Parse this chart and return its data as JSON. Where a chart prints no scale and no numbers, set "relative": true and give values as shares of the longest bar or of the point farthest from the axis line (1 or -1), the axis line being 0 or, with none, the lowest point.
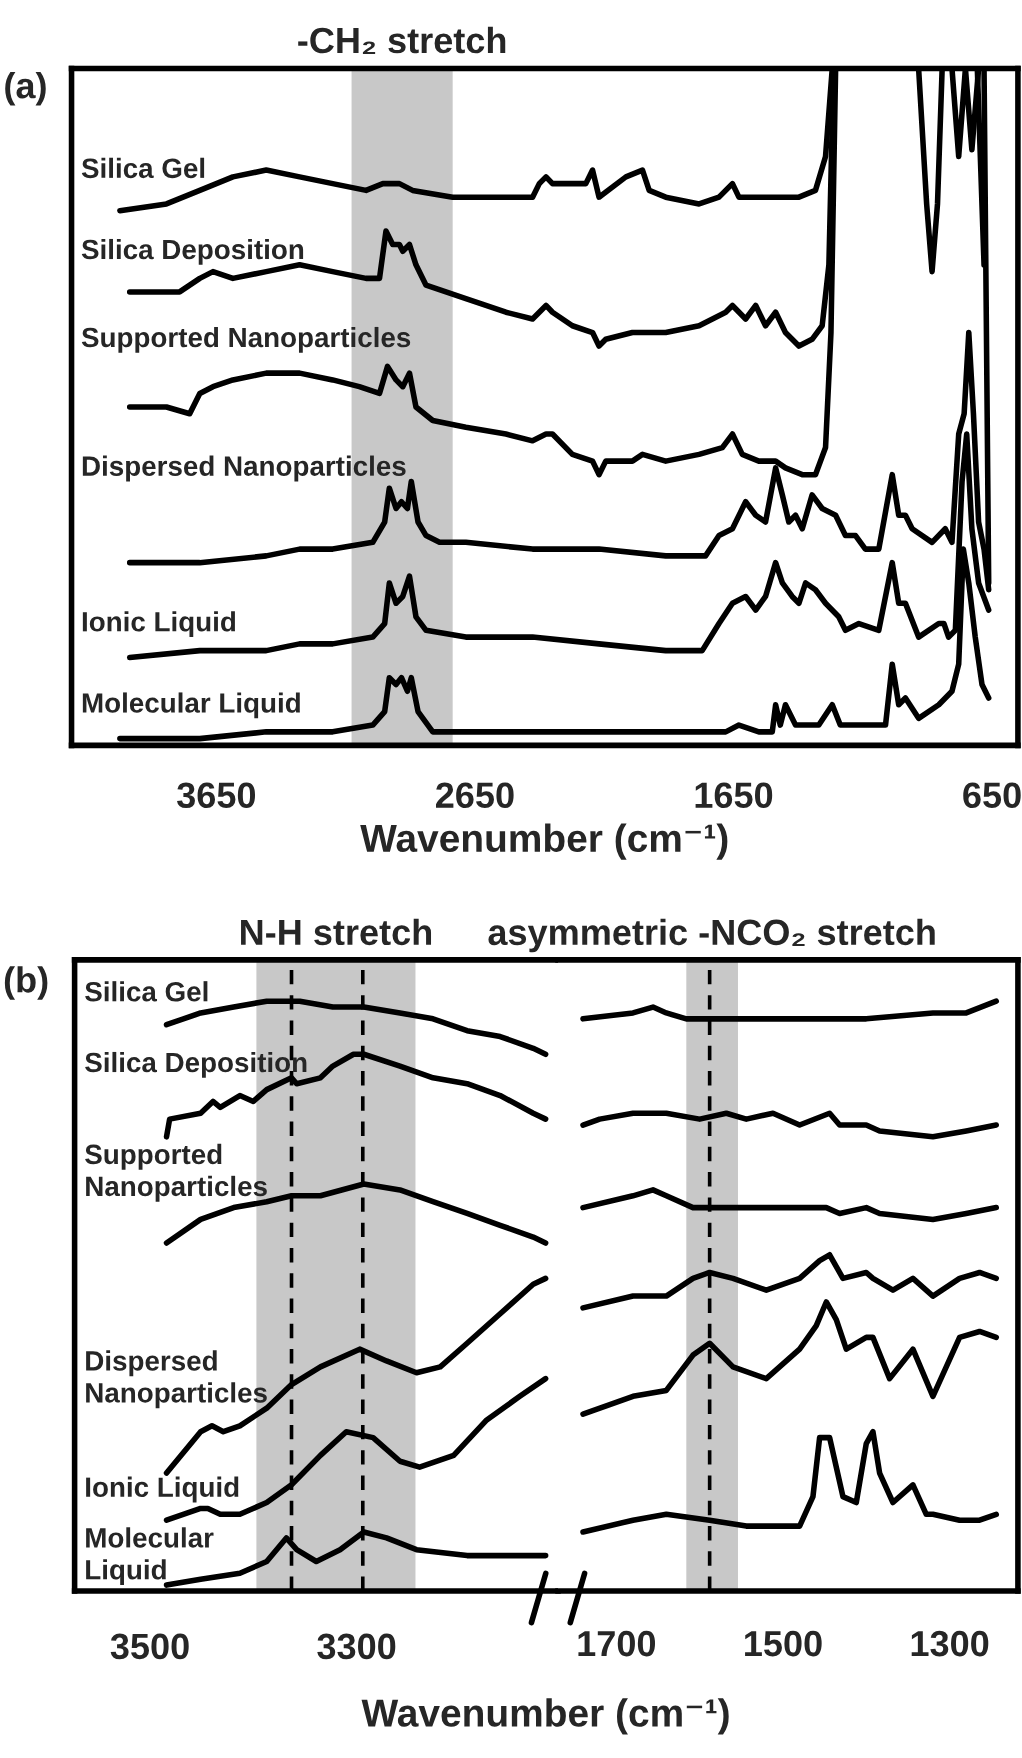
{
  "chart_data": [
    {
      "type": "line",
      "relative": true,
      "xlabel": "Wavenumber (cm⁻¹)",
      "xlim": [
        4210,
        550
      ],
      "xticks": [
        3650,
        2650,
        1650,
        650
      ],
      "annotations": [
        "(a)"
      ],
      "bands": [
        {
          "axis": "x",
          "from": 3127,
          "to": 2736,
          "label": "-CH₂ stretch",
          "color": "#c8c8c8"
        }
      ],
      "series": [
        {
          "name": "Silica Gel",
          "color": "#000000",
          "x": [
            4023,
            3843,
            3714,
            3586,
            3457,
            3328,
            3200,
            3071,
            3006,
            2968,
            2942,
            2891,
            2736,
            2530,
            2427,
            2401,
            2375,
            2350,
            2298,
            2221,
            2195,
            2170,
            2066,
            2002,
            1976,
            1912,
            1783,
            1706,
            1654,
            1629,
            1526,
            1397,
            1333,
            1294,
            1268,
            1114,
            934,
            903,
            882,
            861,
            843,
            837,
            805,
            779,
            753,
            728,
            702
          ],
          "values": [
            0.79,
            0.8,
            0.82,
            0.84,
            0.85,
            0.84,
            0.83,
            0.82,
            0.83,
            0.83,
            0.83,
            0.82,
            0.81,
            0.81,
            0.81,
            0.83,
            0.84,
            0.83,
            0.83,
            0.83,
            0.85,
            0.81,
            0.84,
            0.85,
            0.82,
            0.81,
            0.8,
            0.81,
            0.83,
            0.81,
            0.81,
            0.81,
            0.82,
            0.87,
            1.0,
            null,
            1.0,
            0.8,
            0.7,
            0.8,
            1.0,
            null,
            1.0,
            0.87,
            1.0,
            0.88,
            1.0
          ]
        },
        {
          "name": "Silica Deposition",
          "color": "#000000",
          "x": [
            3985,
            3895,
            3792,
            3714,
            3663,
            3586,
            3457,
            3328,
            3200,
            3071,
            3019,
            2994,
            2968,
            2942,
            2929,
            2903,
            2878,
            2839,
            2685,
            2530,
            2427,
            2375,
            2350,
            2273,
            2195,
            2170,
            2144,
            2041,
            1912,
            1783,
            1680,
            1654,
            1603,
            1564,
            1526,
            1487,
            1449,
            1397,
            1346,
            1307,
            1281,
            1263,
            1114,
            707,
            681
          ],
          "values": [
            0.67,
            0.67,
            0.67,
            0.69,
            0.7,
            0.69,
            0.7,
            0.71,
            0.7,
            0.69,
            0.69,
            0.76,
            0.74,
            0.74,
            0.73,
            0.74,
            0.71,
            0.68,
            0.66,
            0.64,
            0.63,
            0.65,
            0.64,
            0.62,
            0.61,
            0.59,
            0.6,
            0.61,
            0.61,
            0.62,
            0.64,
            0.65,
            0.63,
            0.65,
            0.62,
            0.64,
            0.61,
            0.59,
            0.6,
            0.62,
            0.71,
            1.0,
            null,
            1.0,
            0.71
          ]
        },
        {
          "name": "Supported Nanoparticles",
          "color": "#000000",
          "x": [
            3985,
            3843,
            3753,
            3714,
            3663,
            3586,
            3457,
            3328,
            3200,
            3097,
            3019,
            2988,
            2955,
            2929,
            2903,
            2878,
            2813,
            2685,
            2530,
            2427,
            2375,
            2350,
            2273,
            2195,
            2170,
            2144,
            2041,
            2002,
            1912,
            1783,
            1693,
            1654,
            1616,
            1552,
            1487,
            1449,
            1384,
            1333,
            1294,
            1273,
            1255,
            1114,
            681,
            663
          ],
          "values": [
            0.5,
            0.5,
            0.49,
            0.52,
            0.53,
            0.54,
            0.55,
            0.55,
            0.54,
            0.53,
            0.52,
            0.56,
            0.54,
            0.53,
            0.55,
            0.5,
            0.48,
            0.47,
            0.46,
            0.45,
            0.46,
            0.46,
            0.43,
            0.42,
            0.4,
            0.42,
            0.42,
            0.43,
            0.42,
            0.43,
            0.44,
            0.46,
            0.43,
            0.42,
            0.42,
            0.41,
            0.4,
            0.4,
            0.44,
            0.61,
            1.0,
            null,
            1.0,
            0.24
          ]
        },
        {
          "name": "Dispersed Nanoparticles",
          "color": "#000000",
          "x": [
            3985,
            3714,
            3457,
            3328,
            3200,
            3045,
            2999,
            2981,
            2955,
            2934,
            2911,
            2896,
            2870,
            2839,
            2787,
            2685,
            2427,
            2170,
            1912,
            1758,
            1706,
            1654,
            1603,
            1564,
            1526,
            1487,
            1461,
            1436,
            1410,
            1384,
            1346,
            1307,
            1255,
            1217,
            1178,
            1140,
            1088,
            1036,
            1011,
            985,
            959,
            882,
            831,
            805,
            779,
            758,
            740,
            722,
            702,
            681,
            663
          ],
          "values": [
            0.27,
            0.27,
            0.28,
            0.29,
            0.29,
            0.3,
            0.33,
            0.38,
            0.35,
            0.36,
            0.35,
            0.39,
            0.33,
            0.31,
            0.3,
            0.3,
            0.29,
            0.29,
            0.28,
            0.28,
            0.31,
            0.32,
            0.36,
            0.34,
            0.33,
            0.41,
            0.37,
            0.33,
            0.34,
            0.32,
            0.37,
            0.35,
            0.34,
            0.31,
            0.31,
            0.29,
            0.29,
            0.4,
            0.34,
            0.34,
            0.32,
            0.3,
            0.32,
            0.3,
            0.46,
            0.49,
            0.61,
            0.49,
            0.33,
            0.29,
            0.23
          ]
        },
        {
          "name": "Ionic Liquid",
          "color": "#000000",
          "x": [
            3985,
            3714,
            3457,
            3328,
            3200,
            3045,
            2999,
            2981,
            2955,
            2929,
            2903,
            2878,
            2839,
            2685,
            2427,
            2170,
            1912,
            1771,
            1706,
            1654,
            1603,
            1564,
            1526,
            1487,
            1461,
            1423,
            1397,
            1371,
            1333,
            1294,
            1243,
            1217,
            1165,
            1088,
            1036,
            1011,
            985,
            934,
            856,
            836,
            818,
            792,
            766,
            748,
            728,
            702,
            663
          ],
          "values": [
            0.13,
            0.14,
            0.14,
            0.15,
            0.15,
            0.16,
            0.18,
            0.24,
            0.21,
            0.22,
            0.25,
            0.19,
            0.17,
            0.16,
            0.16,
            0.15,
            0.14,
            0.14,
            0.18,
            0.21,
            0.22,
            0.2,
            0.22,
            0.27,
            0.24,
            0.22,
            0.21,
            0.24,
            0.23,
            0.21,
            0.19,
            0.17,
            0.18,
            0.17,
            0.27,
            0.21,
            0.21,
            0.16,
            0.18,
            0.18,
            0.16,
            0.17,
            0.39,
            0.46,
            0.32,
            0.24,
            0.2
          ]
        },
        {
          "name": "Molecular Liquid",
          "color": "#000000",
          "x": [
            4023,
            3714,
            3457,
            3200,
            3045,
            2999,
            2981,
            2955,
            2934,
            2911,
            2896,
            2870,
            2813,
            2685,
            2427,
            2170,
            1912,
            1680,
            1629,
            1552,
            1500,
            1487,
            1469,
            1449,
            1410,
            1320,
            1268,
            1237,
            1191,
            1140,
            1062,
            1036,
            1011,
            985,
            934,
            856,
            805,
            779,
            761,
            740,
            715,
            689,
            663
          ],
          "values": [
            0.01,
            0.01,
            0.02,
            0.02,
            0.03,
            0.05,
            0.1,
            0.09,
            0.1,
            0.08,
            0.1,
            0.05,
            0.02,
            0.02,
            0.02,
            0.02,
            0.02,
            0.02,
            0.03,
            0.02,
            0.02,
            0.06,
            0.03,
            0.06,
            0.03,
            0.03,
            0.06,
            0.03,
            0.03,
            0.03,
            0.03,
            0.12,
            0.06,
            0.07,
            0.04,
            0.06,
            0.08,
            0.12,
            0.29,
            0.24,
            0.16,
            0.09,
            0.07
          ]
        }
      ]
    },
    {
      "type": "line",
      "relative": true,
      "xlim": [
        3573,
        3105
      ],
      "xticks": [
        3500,
        3300
      ],
      "annotations": [
        "(b)"
      ],
      "bands": [
        {
          "axis": "x",
          "from": 3397,
          "to": 3243,
          "label": "N-H stretch",
          "color": "#c8c8c8"
        }
      ],
      "ref_lines": [
        {
          "axis": "x",
          "value": 3363,
          "line_style": "dashed",
          "color": "#000000"
        },
        {
          "axis": "x",
          "value": 3294,
          "line_style": "dashed",
          "color": "#000000"
        }
      ],
      "series": [
        {
          "name": "Silica Gel",
          "color": "#000000",
          "x": [
            3484,
            3451,
            3419,
            3387,
            3355,
            3323,
            3293,
            3258,
            3226,
            3193,
            3161,
            3129,
            3117
          ],
          "values": [
            0.96,
            0.98,
            0.99,
            1.0,
            1.0,
            0.99,
            0.99,
            0.98,
            0.97,
            0.95,
            0.94,
            0.92,
            0.91
          ]
        },
        {
          "name": "Silica Deposition",
          "color": "#000000",
          "x": [
            3484,
            3481,
            3451,
            3439,
            3432,
            3413,
            3400,
            3387,
            3363,
            3358,
            3335,
            3323,
            3303,
            3293,
            3258,
            3226,
            3193,
            3161,
            3129,
            3117
          ],
          "values": [
            0.77,
            0.8,
            0.81,
            0.83,
            0.82,
            0.84,
            0.83,
            0.85,
            0.87,
            0.86,
            0.87,
            0.89,
            0.91,
            0.91,
            0.89,
            0.87,
            0.86,
            0.84,
            0.81,
            0.8
          ]
        },
        {
          "name": "Supported\nNanoparticles",
          "color": "#000000",
          "x": [
            3484,
            3451,
            3419,
            3387,
            3363,
            3335,
            3293,
            3258,
            3226,
            3193,
            3161,
            3129,
            3117
          ],
          "values": [
            0.59,
            0.63,
            0.65,
            0.66,
            0.67,
            0.67,
            0.69,
            0.68,
            0.66,
            0.64,
            0.62,
            0.6,
            0.59
          ]
        },
        {
          "name": "Dispersed\nNanoparticles",
          "color": "#000000",
          "x": [
            3484,
            3451,
            3440,
            3429,
            3413,
            3387,
            3363,
            3335,
            3297,
            3271,
            3242,
            3219,
            3193,
            3161,
            3129,
            3117
          ],
          "values": [
            0.2,
            0.27,
            0.28,
            0.27,
            0.28,
            0.31,
            0.35,
            0.38,
            0.41,
            0.39,
            0.37,
            0.38,
            0.42,
            0.47,
            0.52,
            0.53
          ]
        },
        {
          "name": "Ionic Liquid",
          "color": "#000000",
          "x": [
            3484,
            3451,
            3444,
            3432,
            3413,
            3387,
            3363,
            3335,
            3310,
            3284,
            3258,
            3239,
            3206,
            3174,
            3142,
            3117
          ],
          "values": [
            0.12,
            0.14,
            0.14,
            0.13,
            0.13,
            0.15,
            0.18,
            0.23,
            0.27,
            0.26,
            0.22,
            0.21,
            0.23,
            0.29,
            0.33,
            0.36
          ]
        },
        {
          "name": "Molecular\nLiquid",
          "color": "#000000",
          "x": [
            3484,
            3451,
            3413,
            3387,
            3368,
            3358,
            3339,
            3316,
            3293,
            3271,
            3242,
            3193,
            3155,
            3117
          ],
          "values": [
            0.01,
            0.02,
            0.03,
            0.05,
            0.09,
            0.07,
            0.05,
            0.07,
            0.1,
            0.09,
            0.07,
            0.06,
            0.06,
            0.06
          ]
        }
      ]
    },
    {
      "type": "line",
      "relative": true,
      "xlabel": "Wavenumber (cm⁻¹)",
      "xlim": [
        1770,
        1218
      ],
      "xticks": [
        1700,
        1500,
        1300
      ],
      "bands": [
        {
          "axis": "x",
          "from": 1616,
          "to": 1554,
          "label": "asymmetric -NCO₂ stretch",
          "color": "#c8c8c8"
        }
      ],
      "ref_lines": [
        {
          "axis": "x",
          "value": 1588,
          "line_style": "dashed",
          "color": "#000000"
        }
      ],
      "series": [
        {
          "color": "#000000",
          "x": [
            1740,
            1680,
            1656,
            1640,
            1616,
            1588,
            1560,
            1480,
            1400,
            1320,
            1280,
            1244
          ],
          "values": [
            0.97,
            0.98,
            0.99,
            0.98,
            0.97,
            0.97,
            0.97,
            0.97,
            0.97,
            0.98,
            0.98,
            1.0
          ]
        },
        {
          "color": "#000000",
          "x": [
            1740,
            1720,
            1680,
            1640,
            1600,
            1568,
            1544,
            1512,
            1480,
            1444,
            1432,
            1400,
            1384,
            1320,
            1280,
            1244
          ],
          "values": [
            0.79,
            0.8,
            0.81,
            0.81,
            0.8,
            0.81,
            0.8,
            0.81,
            0.79,
            0.81,
            0.79,
            0.79,
            0.78,
            0.77,
            0.78,
            0.79
          ]
        },
        {
          "color": "#000000",
          "x": [
            1740,
            1680,
            1656,
            1640,
            1608,
            1588,
            1560,
            1480,
            1448,
            1432,
            1400,
            1384,
            1320,
            1280,
            1244
          ],
          "values": [
            0.65,
            0.67,
            0.68,
            0.67,
            0.65,
            0.65,
            0.65,
            0.65,
            0.65,
            0.64,
            0.65,
            0.64,
            0.63,
            0.64,
            0.65
          ]
        },
        {
          "color": "#000000",
          "x": [
            1740,
            1680,
            1640,
            1608,
            1588,
            1560,
            1520,
            1480,
            1456,
            1444,
            1428,
            1400,
            1392,
            1368,
            1344,
            1320,
            1288,
            1264,
            1244
          ],
          "values": [
            0.48,
            0.5,
            0.5,
            0.53,
            0.54,
            0.53,
            0.51,
            0.53,
            0.56,
            0.57,
            0.53,
            0.54,
            0.53,
            0.51,
            0.53,
            0.5,
            0.53,
            0.54,
            0.53
          ]
        },
        {
          "color": "#000000",
          "x": [
            1740,
            1680,
            1640,
            1608,
            1588,
            1560,
            1520,
            1480,
            1460,
            1448,
            1436,
            1424,
            1400,
            1392,
            1372,
            1344,
            1320,
            1288,
            1264,
            1244
          ],
          "values": [
            0.3,
            0.33,
            0.34,
            0.4,
            0.42,
            0.38,
            0.36,
            0.41,
            0.45,
            0.49,
            0.46,
            0.41,
            0.43,
            0.43,
            0.36,
            0.41,
            0.33,
            0.43,
            0.44,
            0.43
          ]
        },
        {
          "color": "#000000",
          "x": [
            1740,
            1680,
            1640,
            1588,
            1544,
            1480,
            1464,
            1456,
            1444,
            1428,
            1412,
            1400,
            1392,
            1384,
            1368,
            1344,
            1328,
            1320,
            1288,
            1264,
            1244
          ],
          "values": [
            0.1,
            0.12,
            0.13,
            0.12,
            0.11,
            0.11,
            0.16,
            0.26,
            0.26,
            0.16,
            0.15,
            0.25,
            0.27,
            0.2,
            0.15,
            0.18,
            0.13,
            0.13,
            0.12,
            0.12,
            0.13
          ]
        }
      ]
    }
  ]
}
